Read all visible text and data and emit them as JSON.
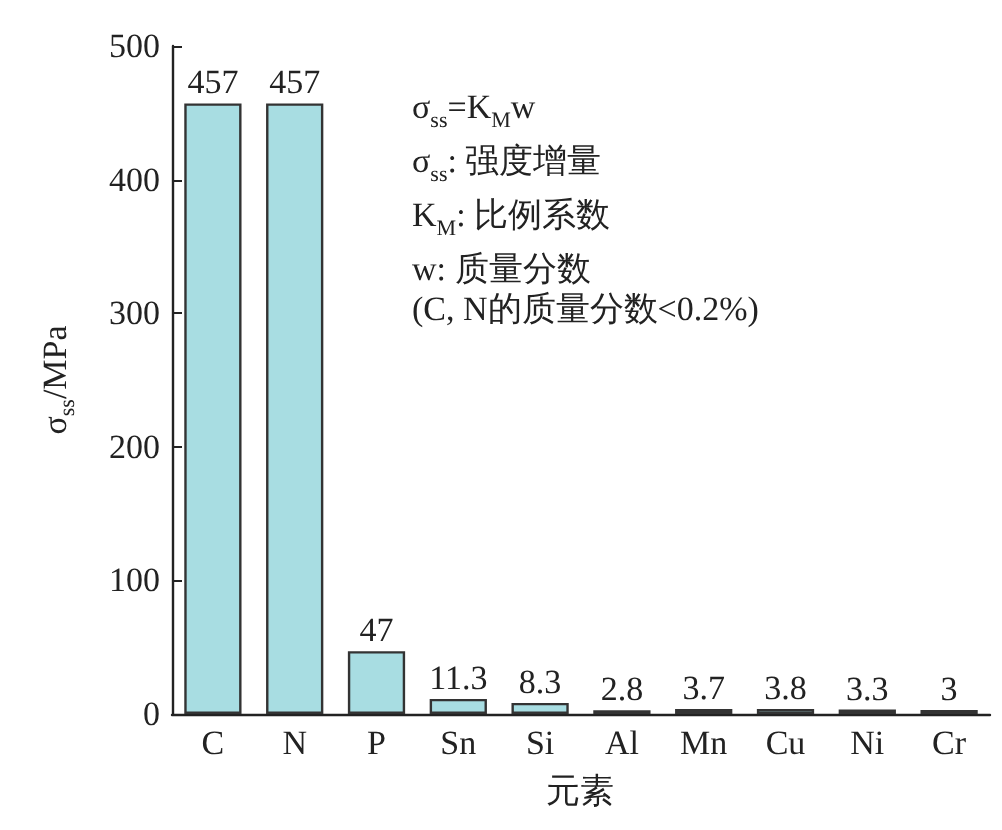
{
  "chart_data": {
    "type": "bar",
    "xlabel": "元素",
    "ylabel": "σ$_{ss}$/MPa",
    "categories": [
      "C",
      "N",
      "P",
      "Sn",
      "Si",
      "Al",
      "Mn",
      "Cu",
      "Ni",
      "Cr"
    ],
    "values": [
      457,
      457,
      47,
      11.3,
      8.3,
      2.8,
      3.7,
      3.8,
      3.3,
      3
    ],
    "color": "#a8dde2",
    "ylim": [
      0,
      500
    ],
    "yticks": [
      0,
      100,
      200,
      300,
      400,
      500
    ],
    "grid": false,
    "data_labels": true,
    "annotations": [
      "σ$_{ss}$=K$_{M}$w",
      "σ$_{ss}$: 强度增量",
      "K$_{M}$: 比例系数",
      "w: 质量分数",
      "(C, N的质量分数<0.2%)"
    ]
  }
}
